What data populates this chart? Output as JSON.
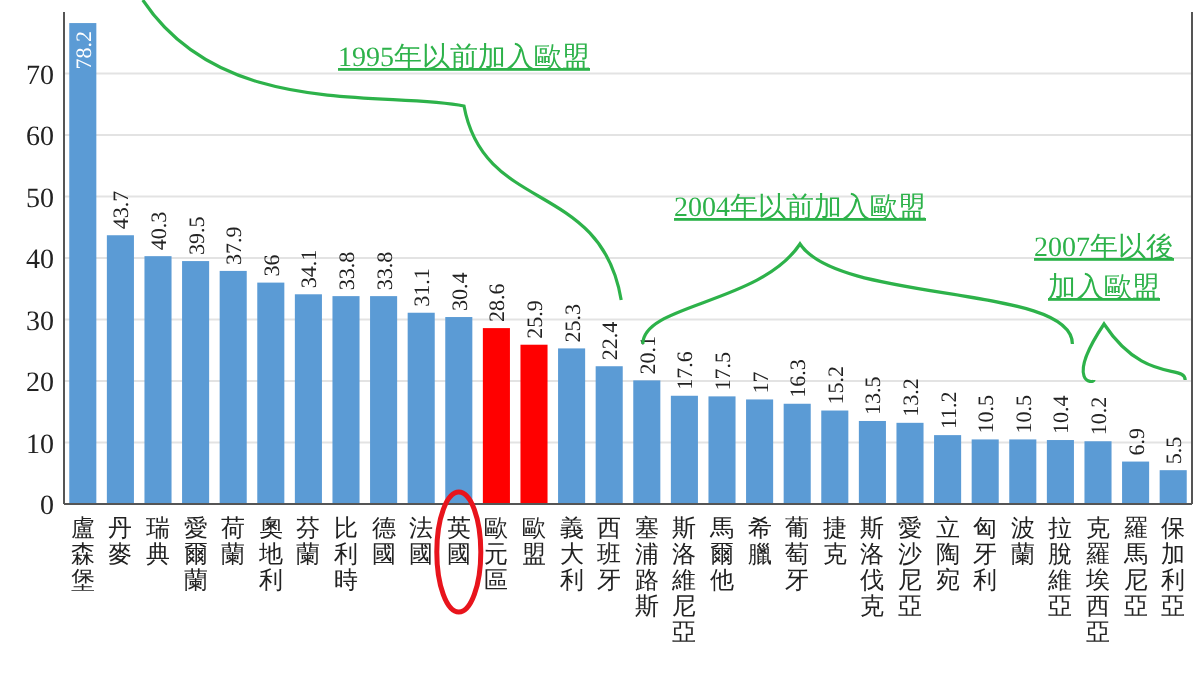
{
  "chart_data": {
    "type": "bar",
    "categories": [
      "盧森堡",
      "丹麥",
      "瑞典",
      "愛爾蘭",
      "荷蘭",
      "奧地利",
      "芬蘭",
      "比利時",
      "德國",
      "法國",
      "英國",
      "歐元區",
      "歐盟",
      "義大利",
      "西班牙",
      "塞浦路斯",
      "斯洛維尼亞",
      "馬爾他",
      "希臘",
      "葡萄牙",
      "捷克",
      "斯洛伐克",
      "愛沙尼亞",
      "立陶宛",
      "匈牙利",
      "波蘭",
      "拉脫維亞",
      "克羅埃西亞",
      "羅馬尼亞",
      "保加利亞"
    ],
    "values": [
      78.2,
      43.7,
      40.3,
      39.5,
      37.9,
      36,
      34.1,
      33.8,
      33.8,
      31.1,
      30.4,
      28.6,
      25.9,
      25.3,
      22.4,
      20.1,
      17.6,
      17.5,
      17,
      16.3,
      15.2,
      13.5,
      13.2,
      11.2,
      10.5,
      10.5,
      10.4,
      10.2,
      6.9,
      5.5
    ],
    "colors": [
      "#5b9bd5",
      "#5b9bd5",
      "#5b9bd5",
      "#5b9bd5",
      "#5b9bd5",
      "#5b9bd5",
      "#5b9bd5",
      "#5b9bd5",
      "#5b9bd5",
      "#5b9bd5",
      "#5b9bd5",
      "#ff0000",
      "#ff0000",
      "#5b9bd5",
      "#5b9bd5",
      "#5b9bd5",
      "#5b9bd5",
      "#5b9bd5",
      "#5b9bd5",
      "#5b9bd5",
      "#5b9bd5",
      "#5b9bd5",
      "#5b9bd5",
      "#5b9bd5",
      "#5b9bd5",
      "#5b9bd5",
      "#5b9bd5",
      "#5b9bd5",
      "#5b9bd5",
      "#5b9bd5"
    ],
    "ylim": [
      0,
      80
    ],
    "yticks": [
      0,
      10,
      20,
      30,
      40,
      50,
      60,
      70
    ],
    "grid": "y",
    "data_labels": true,
    "annotations": [
      "1995年以前加入歐盟",
      "2004年以前加入歐盟",
      "2007年以後加入歐盟"
    ]
  }
}
